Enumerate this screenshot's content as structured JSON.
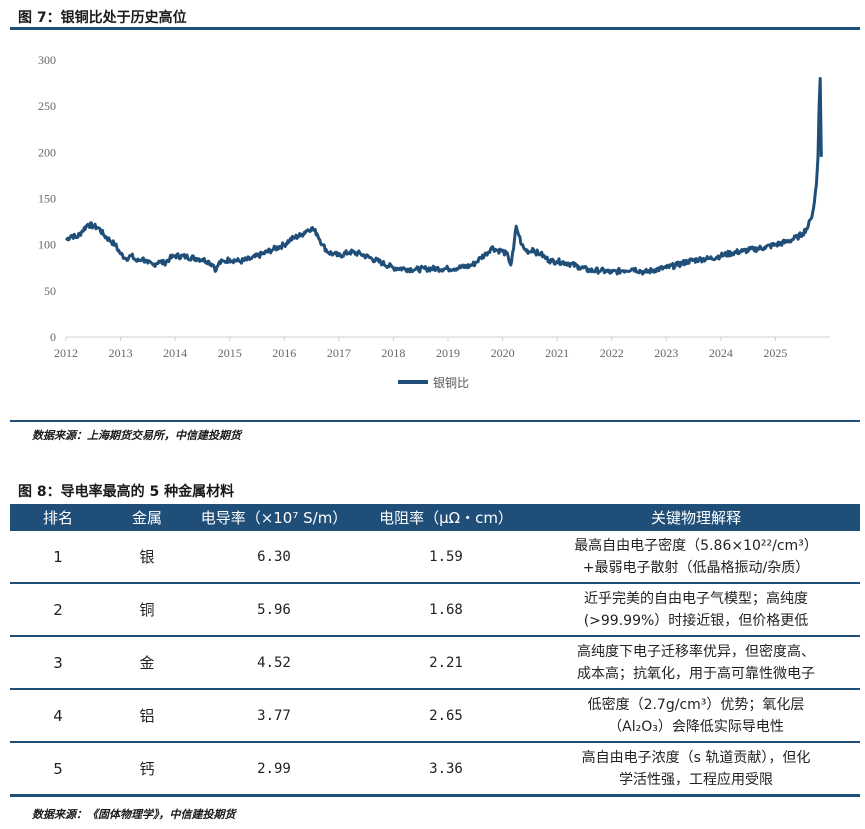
{
  "figure7": {
    "title": "图 7：银铜比处于历史高位",
    "source": "数据来源：上海期货交易所，中信建投期货"
  },
  "chart_data": {
    "type": "line",
    "title": "",
    "xlabel": "",
    "ylabel": "",
    "ylim": [
      0,
      300
    ],
    "yticks": [
      "0",
      "50",
      "100",
      "150",
      "200",
      "250",
      "300"
    ],
    "xticks": [
      "2012",
      "2013",
      "2014",
      "2015",
      "2016",
      "2017",
      "2018",
      "2019",
      "2020",
      "2021",
      "2022",
      "2023",
      "2024",
      "2025"
    ],
    "xlim": [
      2012.0,
      2026.0
    ],
    "grid": false,
    "legend": "bottom",
    "color": "#1f4e79",
    "series": [
      {
        "name": "银铜比",
        "x": [
          2012.0,
          2012.1,
          2012.2,
          2012.3,
          2012.4,
          2012.5,
          2012.6,
          2012.7,
          2012.8,
          2012.9,
          2013.0,
          2013.1,
          2013.2,
          2013.3,
          2013.4,
          2013.5,
          2013.6,
          2013.7,
          2013.8,
          2013.9,
          2014.0,
          2014.2,
          2014.4,
          2014.5,
          2014.6,
          2014.7,
          2014.75,
          2014.8,
          2014.9,
          2015.0,
          2015.2,
          2015.4,
          2015.6,
          2015.8,
          2016.0,
          2016.1,
          2016.2,
          2016.3,
          2016.4,
          2016.5,
          2016.6,
          2016.7,
          2016.8,
          2016.9,
          2017.0,
          2017.2,
          2017.4,
          2017.6,
          2017.8,
          2018.0,
          2018.2,
          2018.4,
          2018.6,
          2018.8,
          2019.0,
          2019.2,
          2019.4,
          2019.5,
          2019.6,
          2019.7,
          2019.8,
          2019.9,
          2020.0,
          2020.1,
          2020.15,
          2020.2,
          2020.25,
          2020.3,
          2020.35,
          2020.4,
          2020.5,
          2020.55,
          2020.6,
          2020.7,
          2020.8,
          2020.9,
          2021.0,
          2021.2,
          2021.4,
          2021.6,
          2021.8,
          2022.0,
          2022.2,
          2022.4,
          2022.6,
          2022.8,
          2023.0,
          2023.2,
          2023.4,
          2023.6,
          2023.8,
          2024.0,
          2024.2,
          2024.4,
          2024.6,
          2024.8,
          2025.0,
          2025.2,
          2025.4,
          2025.5,
          2025.6,
          2025.65,
          2025.7,
          2025.75,
          2025.78,
          2025.8,
          2025.82,
          2025.84
        ],
        "y": [
          105,
          110,
          108,
          115,
          122,
          120,
          118,
          110,
          105,
          100,
          90,
          85,
          88,
          82,
          85,
          80,
          78,
          82,
          80,
          85,
          88,
          87,
          85,
          84,
          82,
          78,
          72,
          80,
          82,
          84,
          82,
          85,
          90,
          95,
          100,
          105,
          108,
          110,
          115,
          118,
          112,
          100,
          92,
          90,
          88,
          92,
          90,
          85,
          80,
          75,
          74,
          73,
          74,
          74,
          74,
          75,
          77,
          80,
          86,
          90,
          97,
          94,
          93,
          88,
          78,
          95,
          120,
          110,
          100,
          95,
          92,
          96,
          92,
          90,
          85,
          82,
          82,
          80,
          76,
          72,
          72,
          70,
          72,
          74,
          70,
          73,
          75,
          78,
          82,
          84,
          85,
          88,
          91,
          93,
          95,
          97,
          100,
          103,
          108,
          112,
          120,
          128,
          140,
          165,
          195,
          250,
          280,
          195
        ]
      }
    ]
  },
  "figure8": {
    "title": "图 8：导电率最高的 5 种金属材料",
    "source": "数据来源：《固体物理学》，中信建投期货",
    "table": {
      "headers": [
        "排名",
        "金属",
        "电导率（×10⁷ S/m）",
        "电阻率（μΩ・cm）",
        "关键物理解释"
      ],
      "rows": [
        {
          "rank": "1",
          "metal": "银",
          "conductivity": "6.30",
          "resistivity": "1.59",
          "explain1": "最高自由电子密度（5.86×10²²/cm³）",
          "explain2": "+最弱电子散射（低晶格振动/杂质）"
        },
        {
          "rank": "2",
          "metal": "铜",
          "conductivity": "5.96",
          "resistivity": "1.68",
          "explain1": "近乎完美的自由电子气模型；高纯度",
          "explain2": "(>99.99%）时接近银，但价格更低"
        },
        {
          "rank": "3",
          "metal": "金",
          "conductivity": "4.52",
          "resistivity": "2.21",
          "explain1": "高纯度下电子迁移率优异，但密度高、",
          "explain2": "成本高；抗氧化，用于高可靠性微电子"
        },
        {
          "rank": "4",
          "metal": "铝",
          "conductivity": "3.77",
          "resistivity": "2.65",
          "explain1": "低密度（2.7g/cm³）优势；氧化层",
          "explain2": "（Al₂O₃）会降低实际导电性"
        },
        {
          "rank": "5",
          "metal": "钙",
          "conductivity": "2.99",
          "resistivity": "3.36",
          "explain1": "高自由电子浓度（s 轨道贡献），但化",
          "explain2": "学活性强，工程应用受限"
        }
      ]
    }
  }
}
